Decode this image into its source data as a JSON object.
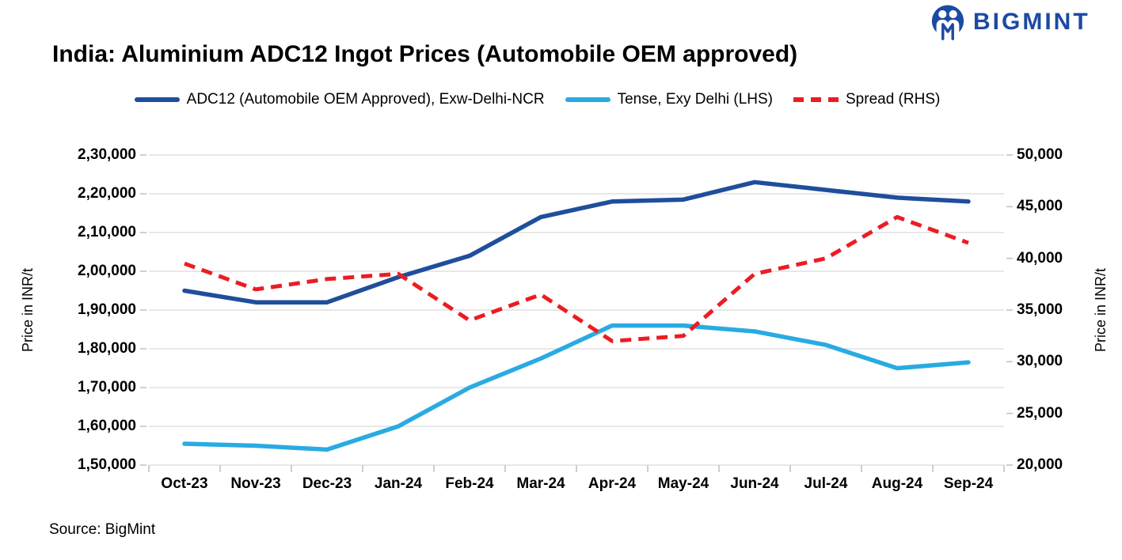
{
  "header": {
    "brand": "BIGMINT",
    "brand_color": "#1B4AA2"
  },
  "source_note": "Source: BigMint",
  "chart_data": {
    "type": "line",
    "title": "India: Aluminium ADC12 Ingot Prices (Automobile OEM approved)",
    "categories": [
      "Oct-23",
      "Nov-23",
      "Dec-23",
      "Jan-24",
      "Feb-24",
      "Mar-24",
      "Apr-24",
      "May-24",
      "Jun-24",
      "Jul-24",
      "Aug-24",
      "Sep-24"
    ],
    "series": [
      {
        "name": "ADC12 (Automobile OEM Approved), Exw-Delhi-NCR",
        "axis": "left",
        "color": "#1F4E9C",
        "dash": false,
        "values": [
          195000,
          192000,
          192000,
          198500,
          204000,
          214000,
          218000,
          218500,
          223000,
          221000,
          219000,
          218000
        ]
      },
      {
        "name": "Tense, Exy Delhi (LHS)",
        "axis": "left",
        "color": "#29ABE2",
        "dash": false,
        "values": [
          155500,
          155000,
          154000,
          160000,
          170000,
          177500,
          186000,
          186000,
          184500,
          181000,
          175000,
          176500
        ]
      },
      {
        "name": "Spread (RHS)",
        "axis": "right",
        "color": "#EC1C24",
        "dash": true,
        "values": [
          39500,
          37000,
          38000,
          38500,
          34000,
          36500,
          32000,
          32500,
          38500,
          40000,
          44000,
          41500
        ]
      }
    ],
    "left_axis": {
      "title": "Price in INR/t",
      "min": 150000,
      "max": 230000,
      "step": 10000,
      "ticks": [
        "2,30,000",
        "2,20,000",
        "2,10,000",
        "2,00,000",
        "1,90,000",
        "1,80,000",
        "1,70,000",
        "1,60,000",
        "1,50,000"
      ]
    },
    "right_axis": {
      "title": "Price in INR/t",
      "min": 20000,
      "max": 50000,
      "step": 5000,
      "ticks": [
        "50,000",
        "45,000",
        "40,000",
        "35,000",
        "30,000",
        "25,000",
        "20,000"
      ]
    },
    "x_axis": {
      "labels": [
        "Oct-23",
        "Nov-23",
        "Dec-23",
        "Jan-24",
        "Feb-24",
        "Mar-24",
        "Apr-24",
        "May-24",
        "Jun-24",
        "Jul-24",
        "Aug-24",
        "Sep-24"
      ]
    },
    "grid": "horizontal",
    "gridline_color": "#D9D9D9",
    "tick_color": "#BFBFBF",
    "legend_position": "top"
  }
}
